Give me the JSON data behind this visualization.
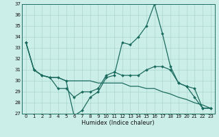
{
  "title": "",
  "xlabel": "Humidex (Indice chaleur)",
  "x": [
    0,
    1,
    2,
    3,
    4,
    5,
    6,
    7,
    8,
    9,
    10,
    11,
    12,
    13,
    14,
    15,
    16,
    17,
    18,
    19,
    20,
    21,
    22,
    23
  ],
  "series": [
    {
      "y": [
        33.5,
        31.0,
        30.5,
        30.3,
        30.3,
        30.0,
        26.8,
        27.3,
        28.5,
        29.0,
        30.3,
        30.5,
        33.5,
        33.3,
        34.0,
        35.0,
        37.0,
        34.3,
        31.3,
        29.8,
        29.5,
        28.5,
        27.5,
        27.5
      ],
      "marker": true
    },
    {
      "y": [
        33.5,
        31.0,
        30.5,
        30.3,
        29.3,
        29.3,
        28.5,
        29.0,
        29.0,
        29.3,
        30.5,
        30.8,
        30.5,
        30.5,
        30.5,
        31.0,
        31.3,
        31.3,
        31.0,
        29.8,
        29.5,
        29.3,
        27.5,
        27.5
      ],
      "marker": true
    },
    {
      "y": [
        33.5,
        31.0,
        30.5,
        30.3,
        30.3,
        30.0,
        30.0,
        30.0,
        30.0,
        29.8,
        29.8,
        29.8,
        29.8,
        29.5,
        29.5,
        29.3,
        29.3,
        29.0,
        28.8,
        28.5,
        28.3,
        28.0,
        27.8,
        27.5
      ],
      "marker": false
    }
  ],
  "line_color": "#1a6b5e",
  "bg_color": "#cceee8",
  "grid_color": "#aad6cf",
  "ylim": [
    27,
    37
  ],
  "yticks": [
    27,
    28,
    29,
    30,
    31,
    32,
    33,
    34,
    35,
    36,
    37
  ],
  "xticks": [
    0,
    1,
    2,
    3,
    4,
    5,
    6,
    7,
    8,
    9,
    10,
    11,
    12,
    13,
    14,
    15,
    16,
    17,
    18,
    19,
    20,
    21,
    22,
    23
  ],
  "markersize": 2.0,
  "linewidth": 0.9,
  "tick_fontsize": 5.0,
  "xlabel_fontsize": 6.0
}
